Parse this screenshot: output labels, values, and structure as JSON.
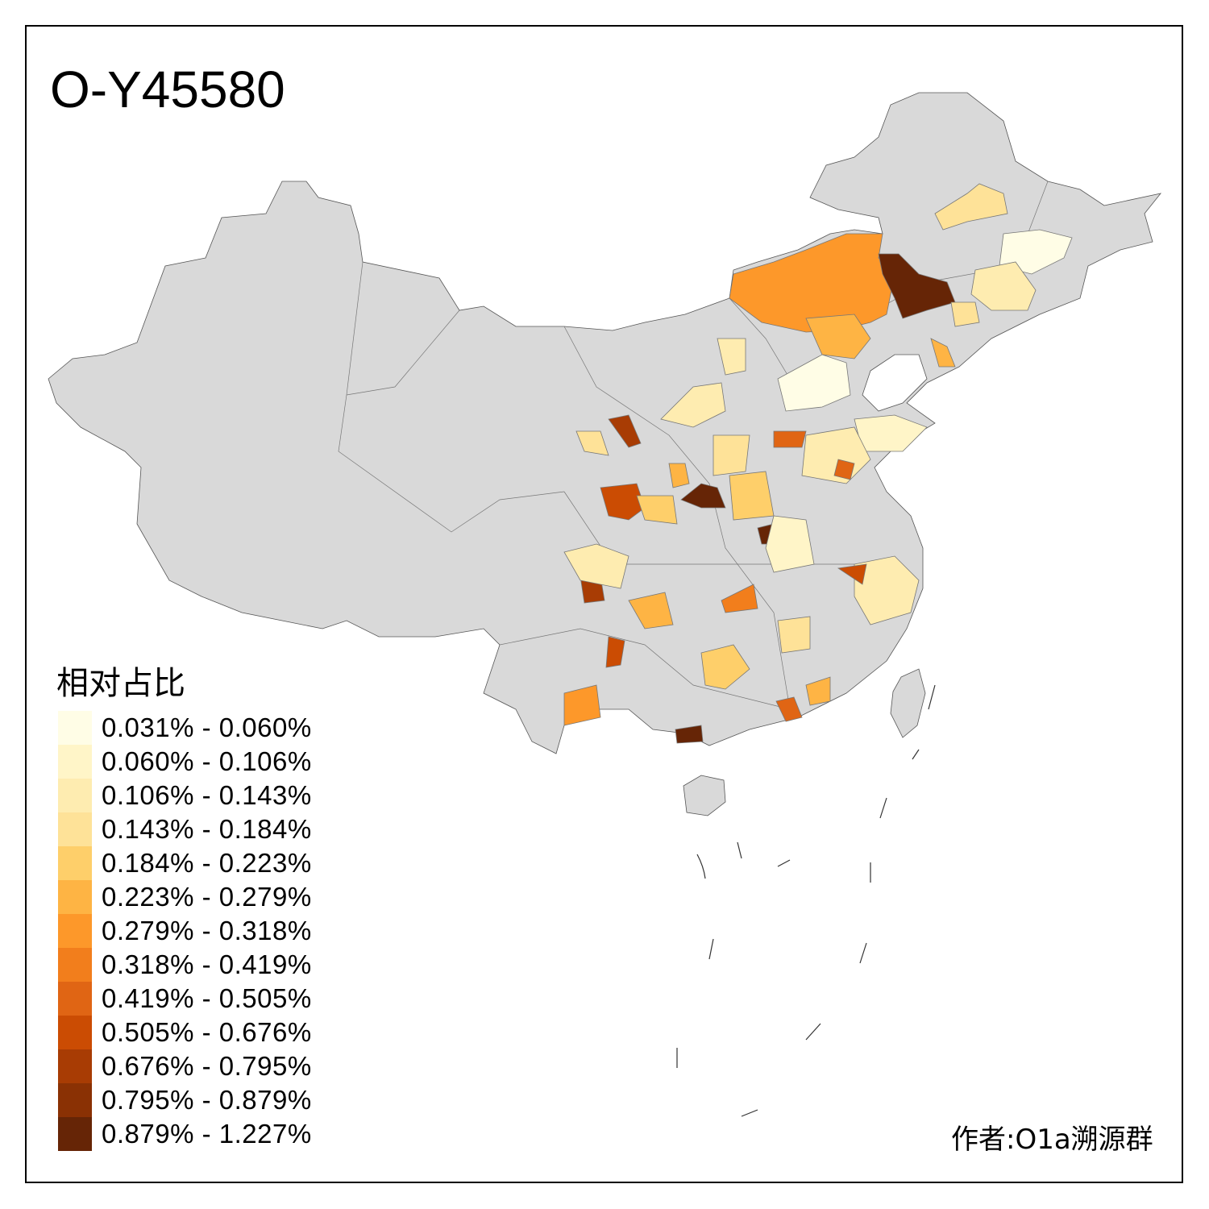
{
  "title": "O-Y45580",
  "legend": {
    "title": "相对占比",
    "classes": [
      {
        "label": "0.031% - 0.060%",
        "color": "#fffde6"
      },
      {
        "label": "0.060% - 0.106%",
        "color": "#fff5c8"
      },
      {
        "label": "0.106% - 0.143%",
        "color": "#feecb0"
      },
      {
        "label": "0.143% - 0.184%",
        "color": "#fee298"
      },
      {
        "label": "0.184% - 0.223%",
        "color": "#fecf6a"
      },
      {
        "label": "0.223% - 0.279%",
        "color": "#feb444"
      },
      {
        "label": "0.279% - 0.318%",
        "color": "#fd982a"
      },
      {
        "label": "0.318% - 0.419%",
        "color": "#f27e1c"
      },
      {
        "label": "0.419% - 0.505%",
        "color": "#e06514"
      },
      {
        "label": "0.505% - 0.676%",
        "color": "#cb4c03"
      },
      {
        "label": "0.676% - 0.795%",
        "color": "#a83c04"
      },
      {
        "label": "0.795% - 0.879%",
        "color": "#8a3104"
      },
      {
        "label": "0.879% - 1.227%",
        "color": "#662506"
      }
    ]
  },
  "base_color": "#d9d9d9",
  "regions": [
    {
      "level": 6
    },
    {
      "level": 12
    },
    {
      "level": 5
    },
    {
      "level": 3
    },
    {
      "level": 0
    },
    {
      "level": 2
    },
    {
      "level": 0
    },
    {
      "level": 12
    },
    {
      "level": 10
    },
    {
      "level": 9
    },
    {
      "level": 4
    },
    {
      "level": 12
    },
    {
      "level": 2
    },
    {
      "level": 6
    },
    {
      "level": 12
    },
    {
      "level": 8
    },
    {
      "level": 5
    },
    {
      "level": 4
    },
    {
      "level": 10
    },
    {
      "level": 9
    },
    {
      "level": 5
    },
    {
      "level": 2
    },
    {
      "level": 1
    },
    {
      "level": 2
    },
    {
      "level": 8
    },
    {
      "level": 8
    },
    {
      "level": 3
    },
    {
      "level": 4
    },
    {
      "level": 1
    },
    {
      "level": 9
    },
    {
      "level": 7
    },
    {
      "level": 3
    },
    {
      "level": 2
    },
    {
      "level": 2
    },
    {
      "level": 3
    },
    {
      "level": 5
    },
    {
      "level": 3
    },
    {
      "level": 5
    }
  ],
  "author": "作者:O1a溯源群"
}
